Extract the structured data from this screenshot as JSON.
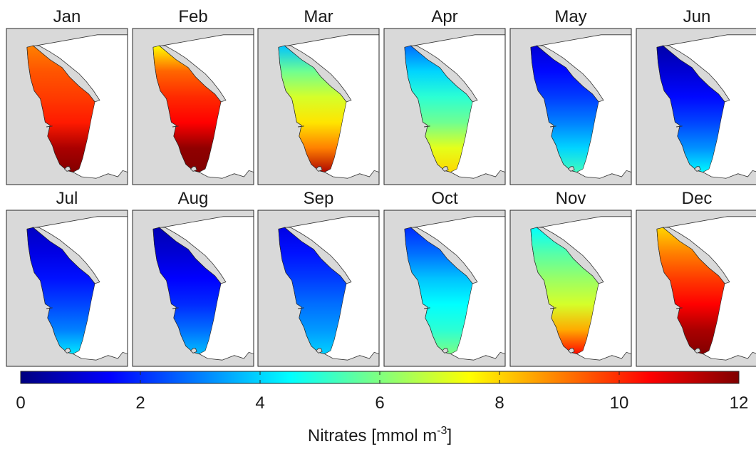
{
  "panels": [
    {
      "month": "Jan",
      "values": [
        9.0,
        9.5,
        9.8,
        10.2,
        11.5,
        12.0
      ]
    },
    {
      "month": "Feb",
      "values": [
        7.5,
        9.3,
        10.0,
        10.5,
        11.8,
        12.0
      ]
    },
    {
      "month": "Mar",
      "values": [
        3.8,
        5.8,
        7.0,
        7.8,
        9.0,
        11.5
      ]
    },
    {
      "month": "Apr",
      "values": [
        2.8,
        4.0,
        5.0,
        5.8,
        7.2,
        8.0
      ]
    },
    {
      "month": "May",
      "values": [
        1.0,
        1.6,
        2.2,
        3.0,
        4.0,
        5.3
      ]
    },
    {
      "month": "Jun",
      "values": [
        0.5,
        1.0,
        1.6,
        2.3,
        3.2,
        4.5
      ]
    },
    {
      "month": "Jul",
      "values": [
        0.8,
        1.2,
        1.7,
        2.3,
        3.0,
        4.3
      ]
    },
    {
      "month": "Aug",
      "values": [
        0.6,
        1.0,
        1.5,
        2.0,
        2.8,
        3.8
      ]
    },
    {
      "month": "Sep",
      "values": [
        1.2,
        1.7,
        2.2,
        2.8,
        3.3,
        4.0
      ]
    },
    {
      "month": "Oct",
      "values": [
        2.0,
        2.8,
        3.8,
        4.5,
        5.0,
        6.0
      ]
    },
    {
      "month": "Nov",
      "values": [
        4.5,
        5.5,
        6.3,
        7.0,
        8.5,
        10.5
      ]
    },
    {
      "month": "Dec",
      "values": [
        8.0,
        9.0,
        9.8,
        10.5,
        11.5,
        12.0
      ]
    }
  ],
  "colorbar": {
    "min": 0,
    "max": 12,
    "ticks": [
      "0",
      "2",
      "4",
      "6",
      "8",
      "10",
      "12"
    ],
    "label_main": "Nitrates [mmol m",
    "label_sup": "-3",
    "label_end": "]"
  },
  "colors": {
    "land": "#d9d9d9",
    "coast": "#333333",
    "frame": "#262626"
  }
}
